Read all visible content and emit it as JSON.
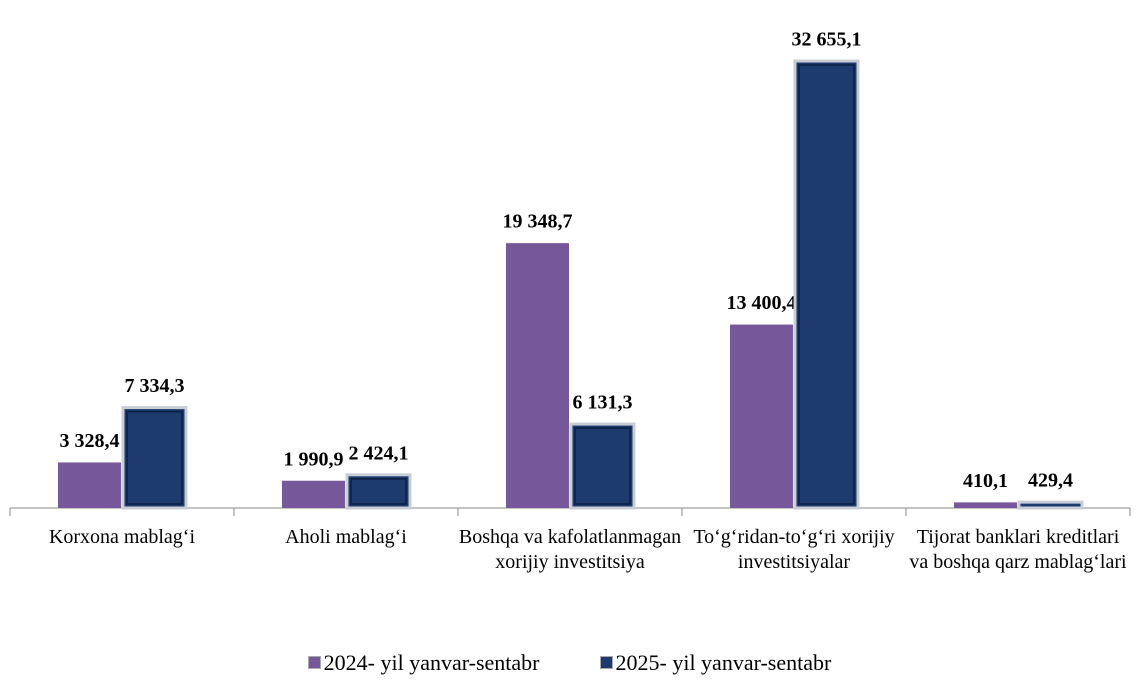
{
  "chart_data": {
    "type": "bar",
    "categories": [
      "Korxona mablag‘i",
      "Aholi mablag‘i",
      "Boshqa va kafolatlanmagan xorijiy investitsiya",
      "To‘g‘ridan-to‘g‘ri xorijiy investitsiyalar",
      "Tijorat banklari kreditlari va boshqa qarz mablag‘lari"
    ],
    "series": [
      {
        "name": "2024- yil yanvar-sentabr",
        "color": "#76589a",
        "values": [
          3328.4,
          1990.9,
          19348.7,
          13400.4,
          410.1
        ],
        "value_labels": [
          "3 328,4",
          "1 990,9",
          "19 348,7",
          "13 400,4",
          "410,1"
        ]
      },
      {
        "name": "2025- yil yanvar-sentabr",
        "color": "#1d3b6e",
        "values": [
          7334.3,
          2424.1,
          6131.3,
          32655.1,
          429.4
        ],
        "value_labels": [
          "7 334,3",
          "2 424,1",
          "6 131,3",
          "32 655,1",
          "429,4"
        ]
      }
    ],
    "legend": "bottom"
  }
}
